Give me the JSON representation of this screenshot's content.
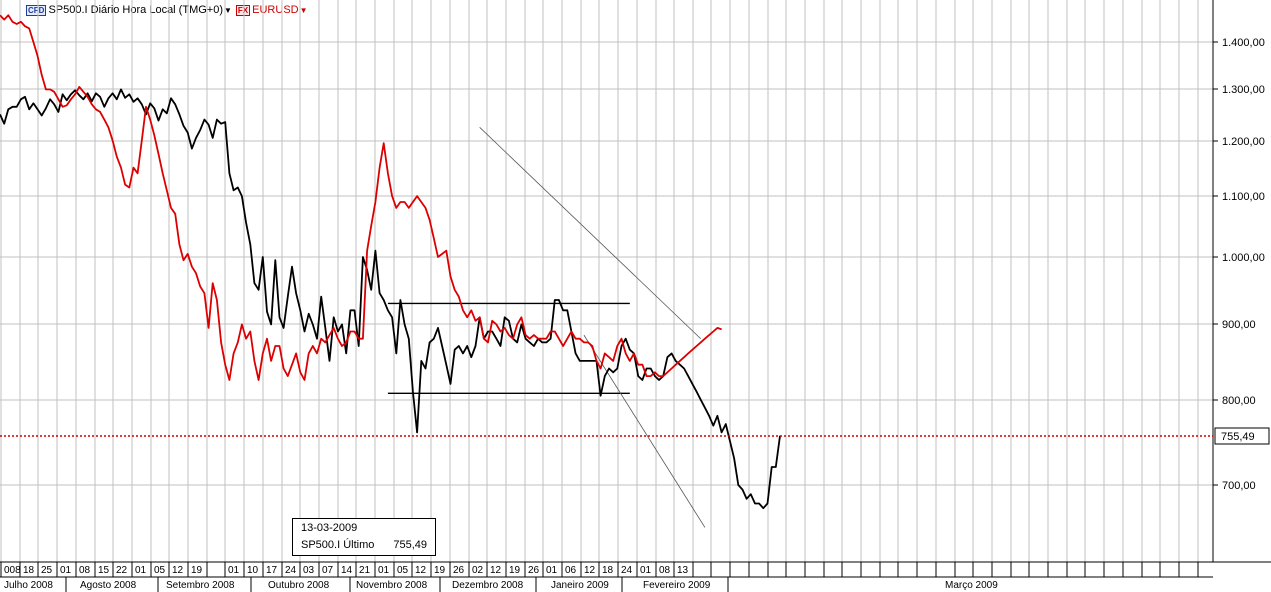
{
  "legend": {
    "series1_badge": "CFD",
    "series1_label": "SP500.I Diário Hora Local (TMG+0)",
    "series2_badge": "FX",
    "series2_label": "EURUSD"
  },
  "infobox": {
    "date": "13-03-2009",
    "label": "SP500.I Último",
    "value": "755,49"
  },
  "colors": {
    "sp500": "#000000",
    "eurusd": "#dd0000",
    "grid": "#c0c0c0",
    "last_line": "#cc0000"
  },
  "chart_data": {
    "type": "line",
    "y_axis": {
      "ticks": [
        {
          "value": 1400,
          "label": "1.400,00"
        },
        {
          "value": 1300,
          "label": "1.300,00"
        },
        {
          "value": 1200,
          "label": "1.200,00"
        },
        {
          "value": 1100,
          "label": "1.100,00"
        },
        {
          "value": 1000,
          "label": "1.000,00"
        },
        {
          "value": 900,
          "label": "900,00"
        },
        {
          "value": 800,
          "label": "800,00"
        },
        {
          "value": 700,
          "label": "700,00"
        }
      ],
      "scale": "log",
      "last_value": 755.49,
      "last_label": "755,49"
    },
    "x_axis": {
      "days": [
        "008",
        "18",
        "25",
        "01",
        "08",
        "15",
        "22",
        "01",
        "05",
        "12",
        "19",
        "",
        "01",
        "10",
        "17",
        "24",
        "03",
        "07",
        "14",
        "21",
        "01",
        "05",
        "12",
        "19",
        "26",
        "02",
        "12",
        "19",
        "26",
        "01",
        "06",
        "12",
        "18",
        "24",
        "01",
        "08",
        "13"
      ],
      "months": [
        "Julho 2008",
        "Agosto 2008",
        "Setembro 2008",
        "Outubro 2008",
        "Novembro 2008",
        "Dezembro 2008",
        "Janeiro 2009",
        "Fevereiro 2009",
        "Março 2009"
      ]
    },
    "grid": true,
    "series": [
      {
        "name": "SP500.I",
        "values": [
          1250,
          1232,
          1260,
          1265,
          1265,
          1280,
          1285,
          1260,
          1272,
          1260,
          1248,
          1262,
          1280,
          1270,
          1255,
          1290,
          1278,
          1290,
          1298,
          1288,
          1280,
          1292,
          1276,
          1292,
          1285,
          1265,
          1282,
          1292,
          1280,
          1300,
          1283,
          1290,
          1275,
          1282,
          1270,
          1250,
          1272,
          1262,
          1238,
          1260,
          1252,
          1282,
          1270,
          1250,
          1228,
          1215,
          1185,
          1205,
          1220,
          1240,
          1230,
          1205,
          1240,
          1232,
          1235,
          1140,
          1110,
          1115,
          1100,
          1055,
          1020,
          960,
          950,
          1000,
          918,
          900,
          995,
          910,
          895,
          940,
          985,
          945,
          920,
          890,
          915,
          900,
          880,
          940,
          895,
          850,
          910,
          890,
          900,
          860,
          920,
          920,
          870,
          1000,
          980,
          950,
          1010,
          945,
          935,
          920,
          910,
          860,
          935,
          900,
          880,
          810,
          760,
          850,
          840,
          875,
          880,
          895,
          870,
          845,
          820,
          865,
          870,
          860,
          870,
          855,
          870,
          910,
          880,
          890,
          890,
          880,
          870,
          910,
          905,
          880,
          875,
          900,
          880,
          875,
          870,
          880,
          875,
          875,
          880,
          935,
          935,
          920,
          920,
          890,
          860,
          850,
          850,
          850,
          850,
          850,
          805,
          830,
          840,
          835,
          840,
          870,
          880,
          865,
          860,
          830,
          825,
          840,
          840,
          830,
          825,
          830,
          855,
          860,
          850,
          845,
          840,
          830,
          820,
          810,
          800,
          790,
          780,
          768,
          780,
          760,
          770,
          750,
          730,
          700,
          695,
          685,
          690,
          680,
          680,
          675,
          680,
          720,
          720,
          756
        ]
      },
      {
        "name": "EURUSD",
        "values": [
          1460,
          1450,
          1460,
          1445,
          1440,
          1445,
          1435,
          1430,
          1400,
          1370,
          1330,
          1300,
          1300,
          1295,
          1280,
          1265,
          1268,
          1280,
          1290,
          1305,
          1295,
          1285,
          1270,
          1260,
          1255,
          1240,
          1225,
          1200,
          1170,
          1150,
          1120,
          1115,
          1150,
          1140,
          1200,
          1265,
          1240,
          1210,
          1175,
          1140,
          1110,
          1080,
          1070,
          1020,
          995,
          1005,
          985,
          975,
          955,
          945,
          895,
          960,
          935,
          875,
          845,
          825,
          860,
          875,
          900,
          880,
          890,
          850,
          825,
          860,
          880,
          850,
          870,
          870,
          840,
          830,
          845,
          860,
          835,
          825,
          860,
          870,
          860,
          880,
          875,
          885,
          895,
          880,
          870,
          875,
          890,
          890,
          880,
          880,
          1010,
          1050,
          1090,
          1150,
          1195,
          1140,
          1100,
          1080,
          1090,
          1090,
          1080,
          1090,
          1100,
          1090,
          1080,
          1060,
          1030,
          1000,
          1005,
          1010,
          970,
          950,
          940,
          920,
          910,
          920,
          905,
          910,
          880,
          875,
          905,
          900,
          890,
          895,
          885,
          880,
          900,
          910,
          885,
          880,
          885,
          880,
          880,
          880,
          890,
          890,
          880,
          870,
          880,
          890,
          880,
          880,
          875,
          875,
          870,
          850,
          840,
          860,
          855,
          850,
          870,
          880,
          860,
          850,
          860,
          845,
          845,
          830,
          830,
          835,
          830,
          830,
          835,
          840,
          845,
          850,
          855,
          860,
          865,
          870,
          875,
          880,
          885,
          890,
          895,
          893
        ]
      }
    ],
    "annotations": [
      {
        "type": "horizontal",
        "value": 930,
        "from_index": 93,
        "to_index": 151
      },
      {
        "type": "horizontal",
        "value": 808,
        "from_index": 93,
        "to_index": 151
      },
      {
        "type": "trend",
        "from": [
          115,
          1225
        ],
        "to": [
          168,
          880
        ]
      },
      {
        "type": "trend",
        "from": [
          140,
          885
        ],
        "to": [
          169,
          655
        ]
      }
    ]
  }
}
